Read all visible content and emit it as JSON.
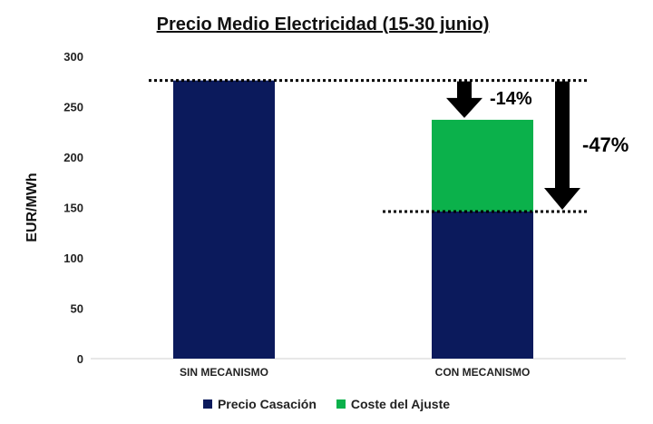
{
  "chart_data": {
    "type": "bar",
    "stacked": true,
    "title": "Precio Medio Electricidad (15-30 junio)",
    "xlabel": "",
    "ylabel": "EUR/MWh",
    "ylim": [
      0,
      300
    ],
    "yticks": [
      0,
      50,
      100,
      150,
      200,
      250,
      300
    ],
    "grid": false,
    "legend_position": "bottom",
    "categories": [
      "SIN MECANISMO",
      "CON MECANISMO"
    ],
    "series": [
      {
        "name": "Precio Casación",
        "color": "#0b1a5c",
        "values": [
          276,
          146
        ]
      },
      {
        "name": "Coste del Ajuste",
        "color": "#0bb14b",
        "values": [
          0,
          91
        ]
      }
    ],
    "reference_lines": [
      276,
      146
    ],
    "annotations": [
      {
        "text": "-14%",
        "from": 276,
        "to": 237
      },
      {
        "text": "-47%",
        "from": 276,
        "to": 146
      }
    ]
  }
}
